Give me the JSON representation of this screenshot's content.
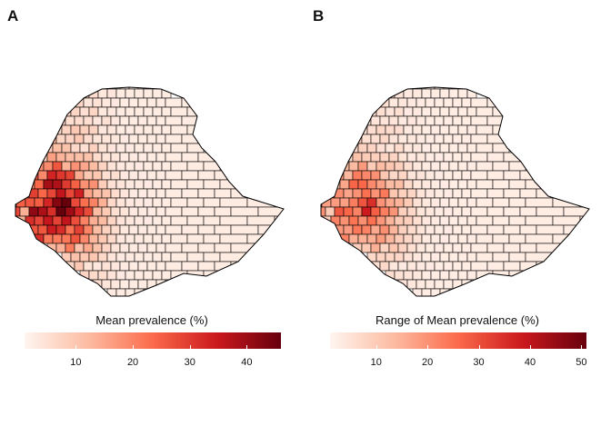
{
  "panels": [
    {
      "letter": "A",
      "legend": {
        "title": "Mean prevalence (%)",
        "min": 1,
        "max": 46,
        "ticks": [
          10,
          20,
          30,
          40
        ],
        "colors": [
          "#fff5f0",
          "#fcbba1",
          "#fb6a4a",
          "#cb181d",
          "#67000d"
        ]
      },
      "map": {
        "region": "Ethiopia administrative districts",
        "hotspot": "west",
        "hotspot_value": 45,
        "background_value": 3
      }
    },
    {
      "letter": "B",
      "legend": {
        "title": "Range of Mean prevalence (%)",
        "min": 1,
        "max": 51,
        "ticks": [
          10,
          20,
          30,
          40,
          50
        ],
        "colors": [
          "#fff5f0",
          "#fcbba1",
          "#fb6a4a",
          "#cb181d",
          "#67000d"
        ]
      },
      "map": {
        "region": "Ethiopia administrative districts",
        "hotspot": "west",
        "hotspot_value": 30,
        "background_value": 3
      }
    }
  ]
}
